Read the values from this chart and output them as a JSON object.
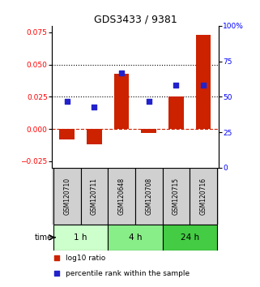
{
  "title": "GDS3433 / 9381",
  "samples": [
    "GSM120710",
    "GSM120711",
    "GSM120648",
    "GSM120708",
    "GSM120715",
    "GSM120716"
  ],
  "log10_ratio": [
    -0.008,
    -0.012,
    0.043,
    -0.003,
    0.025,
    0.073
  ],
  "percentile_rank": [
    47,
    43,
    67,
    47,
    58,
    58
  ],
  "bar_color": "#cc2200",
  "square_color": "#2222cc",
  "dashed_color": "#cc2200",
  "left_ylim": [
    -0.03,
    0.08
  ],
  "left_yticks": [
    -0.025,
    0,
    0.025,
    0.05,
    0.075
  ],
  "right_ylim": [
    0,
    100
  ],
  "right_yticks": [
    0,
    25,
    50,
    75,
    100
  ],
  "right_yticklabels": [
    "0",
    "25",
    "50",
    "75",
    "100%"
  ],
  "dotted_lines": [
    0.025,
    0.05
  ],
  "time_groups": [
    {
      "label": "1 h",
      "indices": [
        0,
        1
      ],
      "color": "#ccffcc"
    },
    {
      "label": "4 h",
      "indices": [
        2,
        3
      ],
      "color": "#88ee88"
    },
    {
      "label": "24 h",
      "indices": [
        4,
        5
      ],
      "color": "#44cc44"
    }
  ],
  "legend": [
    {
      "label": "log10 ratio",
      "color": "#cc2200"
    },
    {
      "label": "percentile rank within the sample",
      "color": "#2222cc"
    }
  ],
  "bar_width": 0.55,
  "square_size": 18,
  "background_color": "#ffffff",
  "sample_bg_color": "#d0d0d0"
}
